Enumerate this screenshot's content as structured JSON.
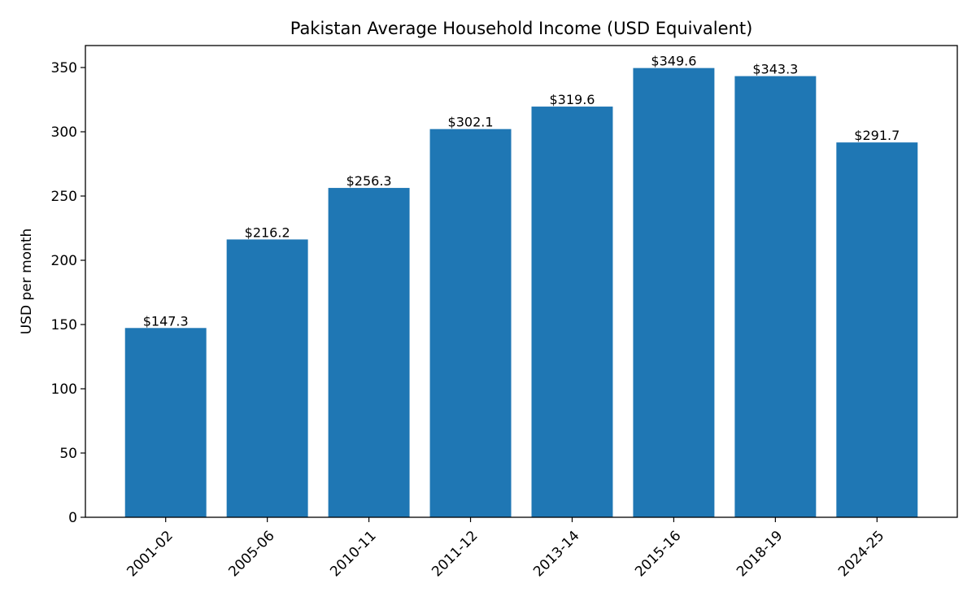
{
  "chart_data": {
    "type": "bar",
    "title": "Pakistan Average Household Income (USD Equivalent)",
    "xlabel": "",
    "ylabel": "USD per month",
    "categories": [
      "2001-02",
      "2005-06",
      "2010-11",
      "2011-12",
      "2013-14",
      "2015-16",
      "2018-19",
      "2024-25"
    ],
    "values": [
      147.3,
      216.2,
      256.3,
      302.1,
      319.6,
      349.6,
      343.3,
      291.7
    ],
    "data_labels": [
      "$147.3",
      "$216.2",
      "$256.3",
      "$302.1",
      "$319.6",
      "$349.6",
      "$343.3",
      "$291.7"
    ],
    "ylim": [
      0,
      367.1
    ],
    "yticks": [
      "0",
      "50",
      "100",
      "150",
      "200",
      "250",
      "300",
      "350"
    ],
    "grid": false,
    "bar_color": "#1f77b4",
    "xtick_rotation": 45
  }
}
